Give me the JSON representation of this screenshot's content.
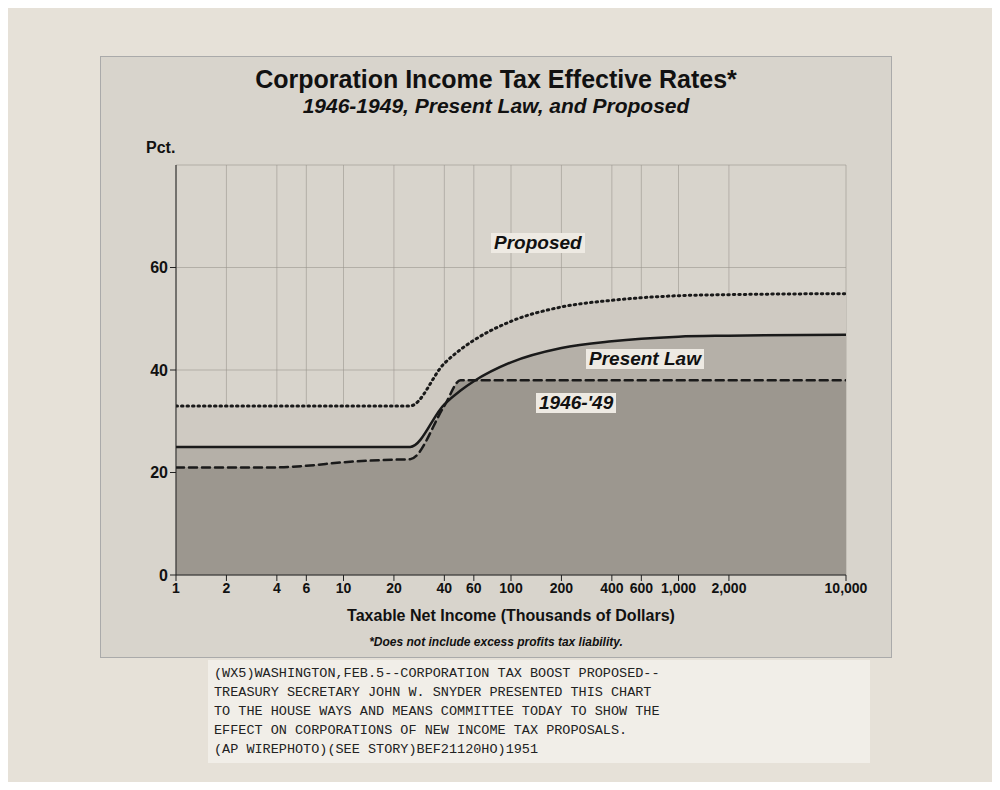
{
  "chart_data": {
    "type": "line",
    "title": "Corporation Income Tax Effective Rates*",
    "subtitle": "1946-1949, Present Law, and Proposed",
    "y_label": "Pct.",
    "x_label": "Taxable Net Income (Thousands of Dollars)",
    "footnote": "*Does not include excess profits tax liability.",
    "caption": [
      "(WX5)WASHINGTON,FEB.5--CORPORATION TAX BOOST PROPOSED--",
      "TREASURY SECRETARY JOHN W. SNYDER PRESENTED THIS CHART",
      "TO THE HOUSE WAYS AND MEANS COMMITTEE TODAY TO SHOW THE",
      "EFFECT ON CORPORATIONS OF NEW INCOME TAX PROPOSALS.",
      "(AP WIREPHOTO)(SEE STORY)BEF21120HO)1951"
    ],
    "log": "x",
    "grid": true,
    "xlim": [
      1,
      10000
    ],
    "xticks": [
      1,
      2,
      4,
      6,
      10,
      20,
      40,
      60,
      100,
      200,
      400,
      600,
      {
        "value": 1000,
        "label": "1,000"
      },
      {
        "value": 2000,
        "label": "2,000"
      },
      {
        "value": 10000,
        "label": "10,000"
      }
    ],
    "ylim": [
      0,
      80
    ],
    "yticks": [
      0,
      20,
      40,
      60
    ],
    "x": [
      1,
      2,
      4,
      6,
      10,
      20,
      25,
      40,
      50,
      60,
      100,
      200,
      400,
      600,
      1000,
      2000,
      10000
    ],
    "series": [
      {
        "name": "Proposed",
        "color": "#1a1a1a",
        "line_style": "dotted",
        "values": [
          33,
          33,
          33,
          33,
          33,
          33,
          33,
          41.3,
          44,
          45.8,
          49.5,
          52.3,
          53.6,
          54.1,
          54.5,
          54.7,
          54.9
        ]
      },
      {
        "name": "Present Law",
        "color": "#1a1a1a",
        "line_style": "solid",
        "values": [
          25,
          25,
          25,
          25,
          25,
          25,
          25,
          33.3,
          36,
          37.8,
          41.5,
          44.3,
          45.6,
          46.1,
          46.5,
          46.7,
          46.9
        ]
      },
      {
        "name": "1946-'49",
        "color": "#1a1a1a",
        "line_style": "dashed",
        "values": [
          21,
          21,
          21,
          21.3,
          22,
          22.5,
          22.6,
          33,
          38,
          38,
          38,
          38,
          38,
          38,
          38,
          38,
          38
        ]
      }
    ]
  }
}
